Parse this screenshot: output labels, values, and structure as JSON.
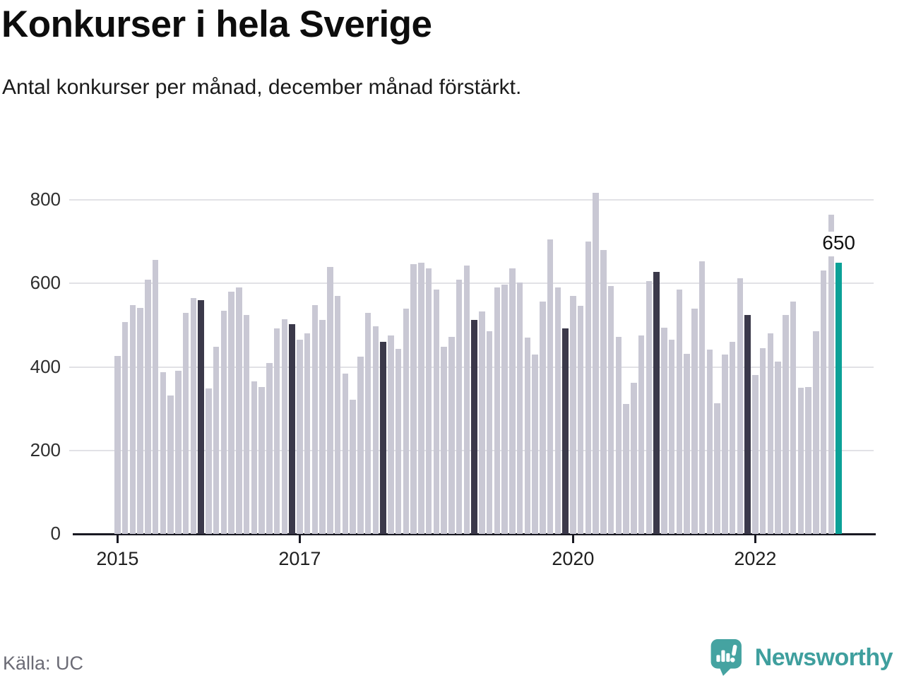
{
  "title": "Konkurser i hela Sverige",
  "subtitle": "Antal konkurser per månad, december månad förstärkt.",
  "source": "Källa: UC",
  "brand": {
    "name": "Newsworthy"
  },
  "annotation": {
    "label": "650"
  },
  "colors": {
    "bar": "#c9c8d4",
    "december": "#3b394a",
    "highlight": "#0ba197",
    "axis": "#191922",
    "grid": "#e2e2e6",
    "brand_teal": "#45a3a1"
  },
  "chart_data": {
    "type": "bar",
    "title": "Konkurser i hela Sverige",
    "subtitle": "Antal konkurser per månad, december månad förstärkt.",
    "xlabel": "",
    "ylabel": "",
    "ylim": [
      0,
      820
    ],
    "yticks": [
      0,
      200,
      400,
      600,
      800
    ],
    "xticks": [
      {
        "label": "2015",
        "month_index": 0
      },
      {
        "label": "2017",
        "month_index": 24
      },
      {
        "label": "2020",
        "month_index": 60
      },
      {
        "label": "2022",
        "month_index": 84
      }
    ],
    "grid": true,
    "emphasis": "december months drawn dark, latest month teal",
    "highlight": {
      "year": 2022,
      "month": 12,
      "value": 650,
      "label": "650"
    },
    "series": [
      {
        "year": 2015,
        "values": [
          427,
          507,
          548,
          541,
          609,
          656,
          387,
          332,
          391,
          530,
          565,
          560
        ]
      },
      {
        "year": 2016,
        "values": [
          348,
          448,
          534,
          581,
          590,
          525,
          365,
          352,
          410,
          492,
          514,
          503
        ]
      },
      {
        "year": 2017,
        "values": [
          465,
          480,
          548,
          512,
          640,
          570,
          385,
          322,
          424,
          530,
          498,
          461
        ]
      },
      {
        "year": 2018,
        "values": [
          475,
          443,
          540,
          646,
          650,
          637,
          585,
          449,
          473,
          610,
          643,
          513
        ]
      },
      {
        "year": 2019,
        "values": [
          533,
          485,
          590,
          598,
          637,
          602,
          470,
          430,
          557,
          705,
          590,
          492
        ]
      },
      {
        "year": 2020,
        "values": [
          570,
          546,
          700,
          818,
          680,
          594,
          472,
          312,
          363,
          475,
          605,
          627
        ]
      },
      {
        "year": 2021,
        "values": [
          495,
          465,
          585,
          432,
          540,
          653,
          442,
          313,
          430,
          460,
          613,
          525
        ]
      },
      {
        "year": 2022,
        "values": [
          380,
          445,
          481,
          413,
          525,
          557,
          350,
          352,
          486,
          631,
          765,
          650
        ]
      }
    ]
  }
}
